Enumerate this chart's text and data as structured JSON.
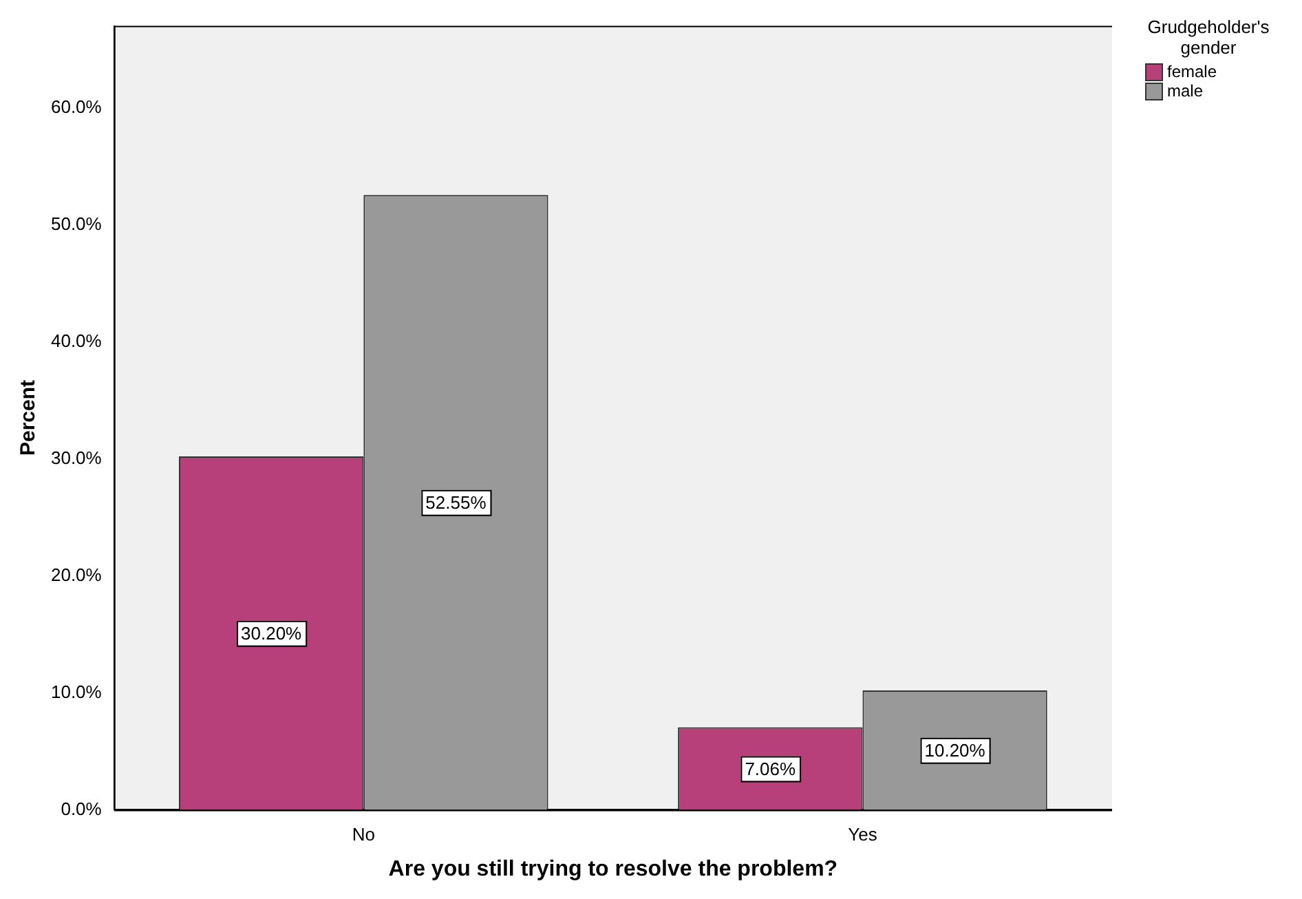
{
  "chart_data": {
    "type": "bar",
    "xlabel": "Are you still trying to resolve the problem?",
    "ylabel": "Percent",
    "legend_title": "Grudgeholder's gender",
    "legend": "top right",
    "categories": [
      "No",
      "Yes"
    ],
    "series": [
      {
        "name": "female",
        "color": "#b8407a",
        "values": [
          30.2,
          7.06
        ],
        "value_labels": [
          "30.20%",
          "7.06%"
        ]
      },
      {
        "name": "male",
        "color": "#999999",
        "values": [
          52.55,
          10.2
        ],
        "value_labels": [
          "52.55%",
          "10.20%"
        ]
      }
    ],
    "ylim": [
      0,
      67
    ],
    "yticks": [
      {
        "value": 0,
        "label": "0.0%"
      },
      {
        "value": 10,
        "label": "10.0%"
      },
      {
        "value": 20,
        "label": "20.0%"
      },
      {
        "value": 30,
        "label": "30.0%"
      },
      {
        "value": 40,
        "label": "40.0%"
      },
      {
        "value": 50,
        "label": "50.0%"
      },
      {
        "value": 60,
        "label": "60.0%"
      }
    ]
  }
}
